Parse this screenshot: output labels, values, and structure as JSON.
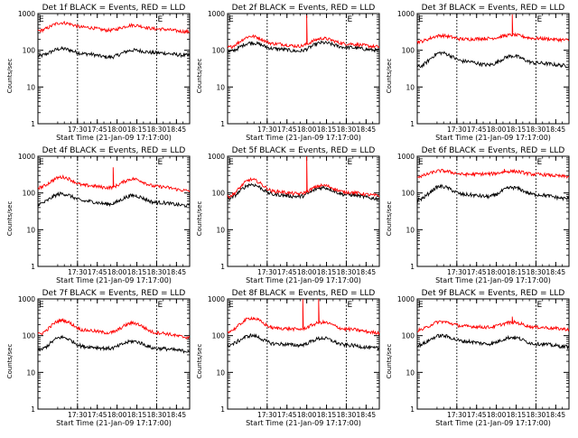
{
  "chart_data": [
    {
      "type": "line",
      "title": "Det 1f BLACK = Events, RED = LLD",
      "xlabel": "Start Time (21-Jan-09 17:17:00)",
      "ylabel": "Counts/sec",
      "yscale": "log",
      "ylim": [
        1,
        1000
      ],
      "xlim_min": [
        17.0,
        18.917
      ],
      "ytick_labels": [
        "1",
        "10",
        "100",
        "1000"
      ],
      "xtick_labels": [
        "17:30",
        "17:45",
        "18:00",
        "18:15",
        "18:30",
        "18:45"
      ],
      "markers": [
        {
          "label": "E",
          "x": 17.0
        },
        {
          "label": "E",
          "x": 18.5
        }
      ],
      "dotted_lines_min": [
        17.5,
        18.5
      ],
      "x": [
        17.0,
        17.3,
        17.6,
        17.9,
        18.2,
        18.5,
        18.917
      ],
      "series": [
        {
          "name": "BLACK = Events",
          "color": "#000000",
          "values": [
            70,
            110,
            80,
            65,
            100,
            85,
            72
          ],
          "spikes": []
        },
        {
          "name": "RED = LLD",
          "color": "#ff0000",
          "values": [
            340,
            560,
            420,
            350,
            480,
            380,
            320
          ],
          "spikes": []
        }
      ]
    },
    {
      "type": "line",
      "title": "Det 2f BLACK = Events, RED = LLD",
      "xlabel": "Start Time (21-Jan-09 17:17:00)",
      "ylabel": "Counts/sec",
      "yscale": "log",
      "ylim": [
        1,
        1000
      ],
      "xlim_min": [
        17.0,
        18.917
      ],
      "ytick_labels": [
        "1",
        "10",
        "100",
        "1000"
      ],
      "xtick_labels": [
        "17:30",
        "17:45",
        "18:00",
        "18:15",
        "18:30",
        "18:45"
      ],
      "markers": [
        {
          "label": "E",
          "x": 17.0
        },
        {
          "label": "E",
          "x": 18.5
        }
      ],
      "dotted_lines_min": [
        17.5,
        18.5
      ],
      "x": [
        17.0,
        17.3,
        17.6,
        17.9,
        18.2,
        18.5,
        18.917
      ],
      "series": [
        {
          "name": "BLACK = Events",
          "color": "#000000",
          "values": [
            90,
            160,
            110,
            95,
            160,
            120,
            100
          ],
          "spikes": []
        },
        {
          "name": "RED = LLD",
          "color": "#ff0000",
          "values": [
            120,
            240,
            150,
            130,
            210,
            150,
            125
          ],
          "spikes": [
            {
              "x": 18.0,
              "value": 900
            }
          ]
        }
      ]
    },
    {
      "type": "line",
      "title": "Det 3f BLACK = Events, RED = LLD",
      "xlabel": "Start Time (21-Jan-09 17:17:00)",
      "ylabel": "Counts/sec",
      "yscale": "log",
      "ylim": [
        1,
        1000
      ],
      "xlim_min": [
        17.0,
        18.917
      ],
      "ytick_labels": [
        "1",
        "10",
        "100",
        "1000"
      ],
      "xtick_labels": [
        "17:30",
        "17:45",
        "18:00",
        "18:15",
        "18:30",
        "18:45"
      ],
      "markers": [
        {
          "label": "E",
          "x": 17.0
        },
        {
          "label": "E",
          "x": 18.5
        }
      ],
      "dotted_lines_min": [
        17.5,
        18.5
      ],
      "x": [
        17.0,
        17.3,
        17.6,
        17.9,
        18.2,
        18.5,
        18.917
      ],
      "series": [
        {
          "name": "BLACK = Events",
          "color": "#000000",
          "values": [
            35,
            85,
            50,
            40,
            70,
            45,
            38
          ],
          "spikes": []
        },
        {
          "name": "RED = LLD",
          "color": "#ff0000",
          "values": [
            170,
            250,
            200,
            210,
            260,
            210,
            190
          ],
          "spikes": [
            {
              "x": 18.2,
              "value": 950
            }
          ]
        }
      ]
    },
    {
      "type": "line",
      "title": "Det 4f BLACK = Events, RED = LLD",
      "xlabel": "Start Time (21-Jan-09 17:17:00)",
      "ylabel": "Counts/sec",
      "yscale": "log",
      "ylim": [
        1,
        1000
      ],
      "xlim_min": [
        17.0,
        18.917
      ],
      "ytick_labels": [
        "1",
        "10",
        "100",
        "1000"
      ],
      "xtick_labels": [
        "17:30",
        "17:45",
        "18:00",
        "18:15",
        "18:30",
        "18:45"
      ],
      "markers": [
        {
          "label": "E",
          "x": 17.0
        },
        {
          "label": "E",
          "x": 18.5
        }
      ],
      "dotted_lines_min": [
        17.5,
        18.5
      ],
      "x": [
        17.0,
        17.3,
        17.6,
        17.9,
        18.2,
        18.5,
        18.917
      ],
      "series": [
        {
          "name": "BLACK = Events",
          "color": "#000000",
          "values": [
            50,
            95,
            60,
            50,
            85,
            55,
            45
          ],
          "spikes": []
        },
        {
          "name": "RED = LLD",
          "color": "#ff0000",
          "values": [
            140,
            270,
            160,
            140,
            240,
            150,
            115
          ],
          "spikes": [
            {
              "x": 17.95,
              "value": 500
            }
          ]
        }
      ]
    },
    {
      "type": "line",
      "title": "Det 5f BLACK = Events, RED = LLD",
      "xlabel": "Start Time (21-Jan-09 17:17:00)",
      "ylabel": "Counts/sec",
      "yscale": "log",
      "ylim": [
        1,
        1000
      ],
      "xlim_min": [
        17.0,
        18.917
      ],
      "ytick_labels": [
        "1",
        "10",
        "100",
        "1000"
      ],
      "xtick_labels": [
        "17:30",
        "17:45",
        "18:00",
        "18:15",
        "18:30",
        "18:45"
      ],
      "markers": [
        {
          "label": "E",
          "x": 17.0
        },
        {
          "label": "E",
          "x": 18.5
        }
      ],
      "dotted_lines_min": [
        17.5,
        18.5
      ],
      "x": [
        17.0,
        17.3,
        17.6,
        17.9,
        18.2,
        18.5,
        18.917
      ],
      "series": [
        {
          "name": "BLACK = Events",
          "color": "#000000",
          "values": [
            70,
            170,
            90,
            80,
            140,
            90,
            70
          ],
          "spikes": []
        },
        {
          "name": "RED = LLD",
          "color": "#ff0000",
          "values": [
            80,
            230,
            110,
            95,
            160,
            105,
            85
          ],
          "spikes": [
            {
              "x": 18.0,
              "value": 1000
            }
          ]
        }
      ]
    },
    {
      "type": "line",
      "title": "Det 6f BLACK = Events, RED = LLD",
      "xlabel": "Start Time (21-Jan-09 17:17:00)",
      "ylabel": "Counts/sec",
      "yscale": "log",
      "ylim": [
        1,
        1000
      ],
      "xlim_min": [
        17.0,
        18.917
      ],
      "ytick_labels": [
        "1",
        "10",
        "100",
        "1000"
      ],
      "xtick_labels": [
        "17:30",
        "17:45",
        "18:00",
        "18:15",
        "18:30",
        "18:45"
      ],
      "markers": [
        {
          "label": "E",
          "x": 17.0
        },
        {
          "label": "E",
          "x": 18.5
        }
      ],
      "dotted_lines_min": [
        17.5,
        18.5
      ],
      "x": [
        17.0,
        17.3,
        17.6,
        17.9,
        18.2,
        18.5,
        18.917
      ],
      "series": [
        {
          "name": "BLACK = Events",
          "color": "#000000",
          "values": [
            65,
            150,
            90,
            80,
            140,
            90,
            70
          ],
          "spikes": []
        },
        {
          "name": "RED = LLD",
          "color": "#ff0000",
          "values": [
            280,
            400,
            320,
            330,
            390,
            320,
            280
          ],
          "spikes": [
            {
              "x": 18.1,
              "value": 450
            }
          ]
        }
      ]
    },
    {
      "type": "line",
      "title": "Det 7f BLACK = Events, RED = LLD",
      "xlabel": "Start Time (21-Jan-09 17:17:00)",
      "ylabel": "Counts/sec",
      "yscale": "log",
      "ylim": [
        1,
        1000
      ],
      "xlim_min": [
        17.0,
        18.917
      ],
      "ytick_labels": [
        "1",
        "10",
        "100",
        "1000"
      ],
      "xtick_labels": [
        "17:30",
        "17:45",
        "18:00",
        "18:15",
        "18:30",
        "18:45"
      ],
      "markers": [
        {
          "label": "E",
          "x": 17.0
        },
        {
          "label": "E",
          "x": 18.5
        }
      ],
      "dotted_lines_min": [
        17.5,
        18.5
      ],
      "x": [
        17.0,
        17.3,
        17.6,
        17.9,
        18.2,
        18.5,
        18.917
      ],
      "series": [
        {
          "name": "BLACK = Events",
          "color": "#000000",
          "values": [
            40,
            90,
            50,
            45,
            70,
            45,
            38
          ],
          "spikes": []
        },
        {
          "name": "RED = LLD",
          "color": "#ff0000",
          "values": [
            110,
            260,
            140,
            120,
            220,
            120,
            90
          ],
          "spikes": [
            {
              "x": 17.95,
              "value": 140
            }
          ]
        }
      ]
    },
    {
      "type": "line",
      "title": "Det 8f BLACK = Events, RED = LLD",
      "xlabel": "Start Time (21-Jan-09 17:17:00)",
      "ylabel": "Counts/sec",
      "yscale": "log",
      "ylim": [
        1,
        1000
      ],
      "xlim_min": [
        17.0,
        18.917
      ],
      "ytick_labels": [
        "1",
        "10",
        "100",
        "1000"
      ],
      "xtick_labels": [
        "17:30",
        "17:45",
        "18:00",
        "18:15",
        "18:30",
        "18:45"
      ],
      "markers": [
        {
          "label": "E",
          "x": 17.0
        },
        {
          "label": "E",
          "x": 18.5
        }
      ],
      "dotted_lines_min": [
        17.5,
        18.5
      ],
      "x": [
        17.0,
        17.3,
        17.6,
        17.9,
        18.2,
        18.5,
        18.917
      ],
      "series": [
        {
          "name": "BLACK = Events",
          "color": "#000000",
          "values": [
            55,
            100,
            60,
            55,
            85,
            55,
            45
          ],
          "spikes": []
        },
        {
          "name": "RED = LLD",
          "color": "#ff0000",
          "values": [
            130,
            300,
            160,
            150,
            230,
            150,
            120
          ],
          "spikes": [
            {
              "x": 17.95,
              "value": 1000
            },
            {
              "x": 18.15,
              "value": 1000
            }
          ]
        }
      ]
    },
    {
      "type": "line",
      "title": "Det 9f BLACK = Events, RED = LLD",
      "xlabel": "Start Time (21-Jan-09 17:17:00)",
      "ylabel": "Counts/sec",
      "yscale": "log",
      "ylim": [
        1,
        1000
      ],
      "xlim_min": [
        17.0,
        18.917
      ],
      "ytick_labels": [
        "1",
        "10",
        "100",
        "1000"
      ],
      "xtick_labels": [
        "17:30",
        "17:45",
        "18:00",
        "18:15",
        "18:30",
        "18:45"
      ],
      "markers": [
        {
          "label": "E",
          "x": 17.0
        },
        {
          "label": "E",
          "x": 18.5
        }
      ],
      "dotted_lines_min": [
        17.5,
        18.5
      ],
      "x": [
        17.0,
        17.3,
        17.6,
        17.9,
        18.2,
        18.5,
        18.917
      ],
      "series": [
        {
          "name": "BLACK = Events",
          "color": "#000000",
          "values": [
            55,
            100,
            70,
            60,
            90,
            60,
            50
          ],
          "spikes": []
        },
        {
          "name": "RED = LLD",
          "color": "#ff0000",
          "values": [
            140,
            240,
            180,
            170,
            230,
            170,
            150
          ],
          "spikes": [
            {
              "x": 18.2,
              "value": 330
            }
          ]
        }
      ]
    }
  ]
}
